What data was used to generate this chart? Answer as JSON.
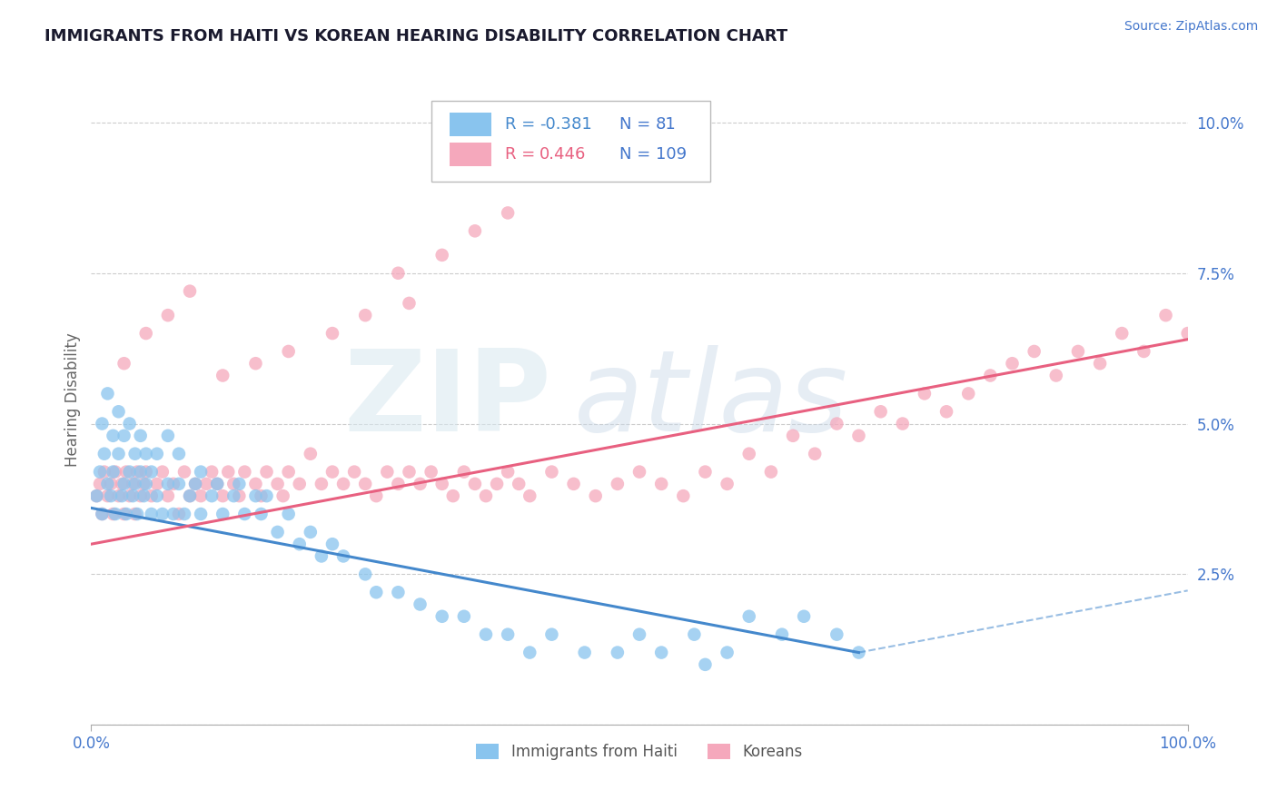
{
  "title": "IMMIGRANTS FROM HAITI VS KOREAN HEARING DISABILITY CORRELATION CHART",
  "source": "Source: ZipAtlas.com",
  "ylabel": "Hearing Disability",
  "yticks": [
    0.0,
    0.025,
    0.05,
    0.075,
    0.1
  ],
  "ytick_labels": [
    "",
    "2.5%",
    "5.0%",
    "7.5%",
    "10.0%"
  ],
  "xlim": [
    0.0,
    1.0
  ],
  "ylim": [
    0.0,
    0.108
  ],
  "legend_r1": "R = -0.381",
  "legend_n1": "N =  81",
  "legend_r2": "R =  0.446",
  "legend_n2": "N = 109",
  "series1_name": "Immigrants from Haiti",
  "series2_name": "Koreans",
  "series1_color": "#89c4ee",
  "series2_color": "#f5a8bc",
  "line1_color": "#4488cc",
  "line2_color": "#e86080",
  "background_color": "#ffffff",
  "grid_color": "#cccccc",
  "title_color": "#1a1a2e",
  "axis_label_color": "#4477cc",
  "haiti_x": [
    0.005,
    0.008,
    0.01,
    0.01,
    0.012,
    0.015,
    0.015,
    0.018,
    0.02,
    0.02,
    0.022,
    0.025,
    0.025,
    0.028,
    0.03,
    0.03,
    0.032,
    0.035,
    0.035,
    0.038,
    0.04,
    0.04,
    0.042,
    0.045,
    0.045,
    0.048,
    0.05,
    0.05,
    0.055,
    0.055,
    0.06,
    0.06,
    0.065,
    0.07,
    0.07,
    0.075,
    0.08,
    0.08,
    0.085,
    0.09,
    0.095,
    0.1,
    0.1,
    0.11,
    0.115,
    0.12,
    0.13,
    0.135,
    0.14,
    0.15,
    0.155,
    0.16,
    0.17,
    0.18,
    0.19,
    0.2,
    0.21,
    0.22,
    0.23,
    0.25,
    0.26,
    0.28,
    0.3,
    0.32,
    0.34,
    0.36,
    0.38,
    0.4,
    0.42,
    0.45,
    0.48,
    0.5,
    0.52,
    0.55,
    0.58,
    0.6,
    0.63,
    0.65,
    0.68,
    0.7,
    0.56
  ],
  "haiti_y": [
    0.038,
    0.042,
    0.035,
    0.05,
    0.045,
    0.04,
    0.055,
    0.038,
    0.042,
    0.048,
    0.035,
    0.045,
    0.052,
    0.038,
    0.04,
    0.048,
    0.035,
    0.042,
    0.05,
    0.038,
    0.04,
    0.045,
    0.035,
    0.042,
    0.048,
    0.038,
    0.04,
    0.045,
    0.035,
    0.042,
    0.038,
    0.045,
    0.035,
    0.04,
    0.048,
    0.035,
    0.04,
    0.045,
    0.035,
    0.038,
    0.04,
    0.035,
    0.042,
    0.038,
    0.04,
    0.035,
    0.038,
    0.04,
    0.035,
    0.038,
    0.035,
    0.038,
    0.032,
    0.035,
    0.03,
    0.032,
    0.028,
    0.03,
    0.028,
    0.025,
    0.022,
    0.022,
    0.02,
    0.018,
    0.018,
    0.015,
    0.015,
    0.012,
    0.015,
    0.012,
    0.012,
    0.015,
    0.012,
    0.015,
    0.012,
    0.018,
    0.015,
    0.018,
    0.015,
    0.012,
    0.01
  ],
  "korean_x": [
    0.005,
    0.008,
    0.01,
    0.012,
    0.015,
    0.018,
    0.02,
    0.022,
    0.025,
    0.028,
    0.03,
    0.032,
    0.035,
    0.038,
    0.04,
    0.042,
    0.045,
    0.048,
    0.05,
    0.055,
    0.06,
    0.065,
    0.07,
    0.075,
    0.08,
    0.085,
    0.09,
    0.095,
    0.1,
    0.105,
    0.11,
    0.115,
    0.12,
    0.125,
    0.13,
    0.135,
    0.14,
    0.15,
    0.155,
    0.16,
    0.17,
    0.175,
    0.18,
    0.19,
    0.2,
    0.21,
    0.22,
    0.23,
    0.24,
    0.25,
    0.26,
    0.27,
    0.28,
    0.29,
    0.3,
    0.31,
    0.32,
    0.33,
    0.34,
    0.35,
    0.36,
    0.37,
    0.38,
    0.39,
    0.4,
    0.42,
    0.44,
    0.46,
    0.48,
    0.5,
    0.52,
    0.54,
    0.56,
    0.58,
    0.6,
    0.62,
    0.64,
    0.66,
    0.68,
    0.7,
    0.72,
    0.74,
    0.76,
    0.78,
    0.8,
    0.82,
    0.84,
    0.86,
    0.88,
    0.9,
    0.92,
    0.94,
    0.96,
    0.98,
    1.0,
    0.28,
    0.32,
    0.35,
    0.29,
    0.38,
    0.25,
    0.22,
    0.18,
    0.15,
    0.12,
    0.09,
    0.07,
    0.05,
    0.03
  ],
  "korean_y": [
    0.038,
    0.04,
    0.035,
    0.042,
    0.038,
    0.04,
    0.035,
    0.042,
    0.038,
    0.04,
    0.035,
    0.042,
    0.038,
    0.04,
    0.035,
    0.042,
    0.038,
    0.04,
    0.042,
    0.038,
    0.04,
    0.042,
    0.038,
    0.04,
    0.035,
    0.042,
    0.038,
    0.04,
    0.038,
    0.04,
    0.042,
    0.04,
    0.038,
    0.042,
    0.04,
    0.038,
    0.042,
    0.04,
    0.038,
    0.042,
    0.04,
    0.038,
    0.042,
    0.04,
    0.045,
    0.04,
    0.042,
    0.04,
    0.042,
    0.04,
    0.038,
    0.042,
    0.04,
    0.042,
    0.04,
    0.042,
    0.04,
    0.038,
    0.042,
    0.04,
    0.038,
    0.04,
    0.042,
    0.04,
    0.038,
    0.042,
    0.04,
    0.038,
    0.04,
    0.042,
    0.04,
    0.038,
    0.042,
    0.04,
    0.045,
    0.042,
    0.048,
    0.045,
    0.05,
    0.048,
    0.052,
    0.05,
    0.055,
    0.052,
    0.055,
    0.058,
    0.06,
    0.062,
    0.058,
    0.062,
    0.06,
    0.065,
    0.062,
    0.068,
    0.065,
    0.075,
    0.078,
    0.082,
    0.07,
    0.085,
    0.068,
    0.065,
    0.062,
    0.06,
    0.058,
    0.072,
    0.068,
    0.065,
    0.06
  ]
}
